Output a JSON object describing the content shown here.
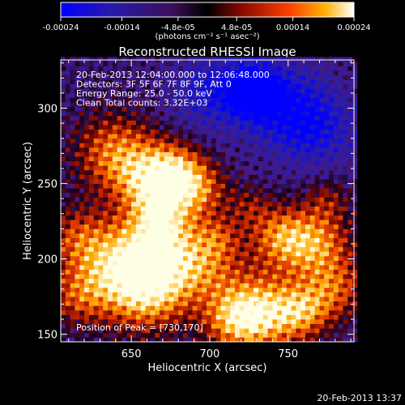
{
  "colorbar": {
    "ticks": [
      "-0.00024",
      "-0.00014",
      "-4.8e-05",
      "4.8e-05",
      "0.00014",
      "0.00024"
    ],
    "units": "(photons cm⁻² s⁻¹ asec⁻²)",
    "range": [
      -0.00024,
      0.00024
    ]
  },
  "chart_data": {
    "type": "heatmap",
    "title": "Reconstructed RHESSI Image",
    "xlabel": "Heliocentric X (arcsec)",
    "ylabel": "Heliocentric Y (arcsec)",
    "xlim": [
      605,
      792
    ],
    "ylim": [
      145,
      332
    ],
    "x_ticks": [
      "650",
      "700",
      "750"
    ],
    "y_ticks": [
      "150",
      "200",
      "250",
      "300"
    ],
    "annotations": [
      "20-Feb-2013 12:04:00.000 to 12:06:48.000",
      "Detectors: 3F 5F 6F 7F 8F 9F, Att 0",
      "Energy Range: 25.0 - 50.0 keV",
      "Clean    Total counts: 3.32E+03"
    ],
    "peak_label": "Position of Peak = [730,170]",
    "peak": [
      730,
      170
    ],
    "grid": false
  },
  "footer": {
    "timestamp": "20-Feb-2013 13:37"
  }
}
